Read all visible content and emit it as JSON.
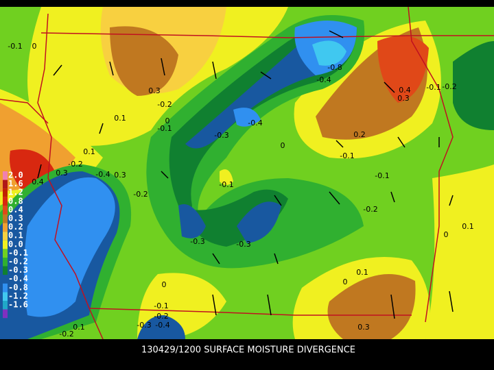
{
  "title": "130429/1200 SURFACE MOISTURE DIVERGENCE",
  "legend": {
    "items": [
      {
        "label": "2.0",
        "color": "#f080b0"
      },
      {
        "label": "1.6",
        "color": "#b01818"
      },
      {
        "label": "1.2",
        "color": "#c02000"
      },
      {
        "label": "0.8",
        "color": "#d82810"
      },
      {
        "label": "0.4",
        "color": "#e04818"
      },
      {
        "label": "0.3",
        "color": "#c07820"
      },
      {
        "label": "0.2",
        "color": "#f0a030"
      },
      {
        "label": "0.1",
        "color": "#f8d040"
      },
      {
        "label": "0.0",
        "color": "#f0f020"
      },
      {
        "label": "-0.1",
        "color": "#70d020"
      },
      {
        "label": "-0.2",
        "color": "#30b030"
      },
      {
        "label": "-0.3",
        "color": "#108030"
      },
      {
        "label": "-0.4",
        "color": "#1858a0"
      },
      {
        "label": "-0.8",
        "color": "#3090f0"
      },
      {
        "label": "-1.2",
        "color": "#40c8f0"
      },
      {
        "label": "-1.6",
        "color": "#20a8c8"
      }
    ]
  },
  "contour_labels": [
    "-0.1",
    "0",
    "0.3",
    "-0.2",
    "0.1",
    "-0.1",
    "0",
    "-0.3",
    "-0.4",
    "-0.8",
    "-0.4",
    "0.4",
    "0.3",
    "-0.1",
    "-0.2",
    "0.2",
    "-0.1",
    "0",
    "0.1",
    "-0.2",
    "0.3",
    "0.4",
    "-0.4",
    "0.3",
    "-0.1",
    "-0.1",
    "-0.2",
    "-0.2",
    "0.1",
    "0",
    "-0.3",
    "-0.3",
    "0",
    "0.1",
    "0",
    "-0.1",
    "-0.2",
    "-0.3",
    "-0.4",
    "0.3",
    "0.1",
    "-0.2"
  ]
}
